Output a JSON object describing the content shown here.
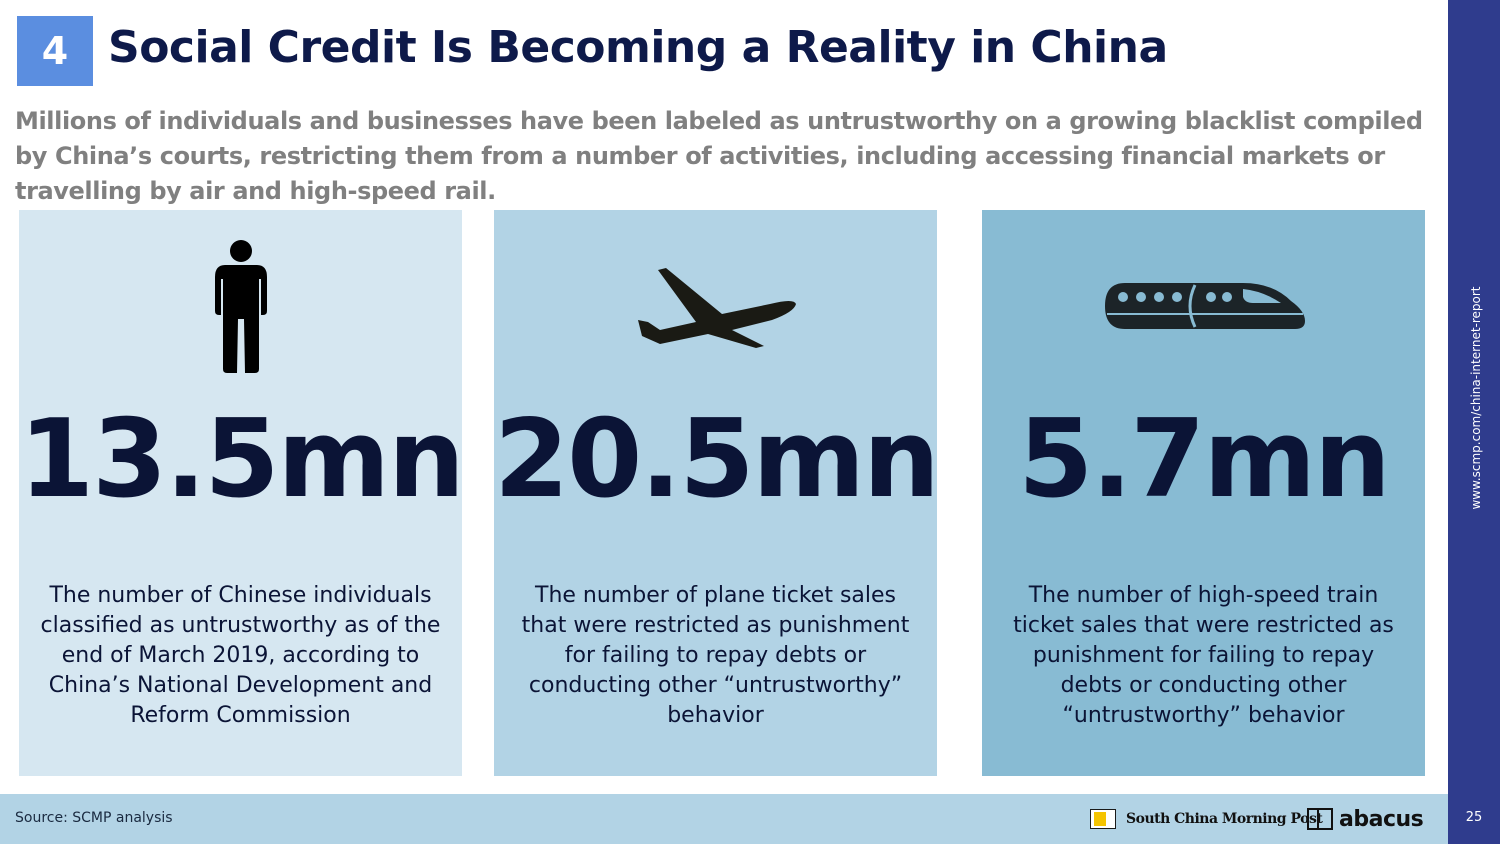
{
  "header": {
    "section_number": "4",
    "title": "Social Credit Is Becoming a Reality in China",
    "subtitle": "Millions of individuals and businesses have been labeled as untrustworthy on a growing blacklist compiled by China’s courts, restricting them from a number of activities, including accessing financial markets or travelling by air and high-speed rail."
  },
  "cards": [
    {
      "icon": "person-icon",
      "stat": "13.5mn",
      "description": "The number of Chinese individuals classified as untrustworthy as of the end of March 2019, according to China’s National Development and Reform Commission"
    },
    {
      "icon": "airplane-icon",
      "stat": "20.5mn",
      "description": "The number of plane ticket sales that were restricted as punishment for failing to repay debts or conducting other “untrustworthy” behavior"
    },
    {
      "icon": "train-icon",
      "stat": "5.7mn",
      "description": "The number of high-speed train ticket sales that were restricted as punishment for failing to repay debts or conducting other “untrustworthy” behavior"
    }
  ],
  "footer": {
    "source": "Source: SCMP analysis",
    "scmp_name": "South China Morning Post",
    "abacus_name": "abacus"
  },
  "sidebar": {
    "url": "www.scmp.com/china-internet-report",
    "page_number": "25"
  },
  "colors": {
    "badge": "#5b8ee0",
    "card_1": "#d6e7f1",
    "card_2": "#b2d3e5",
    "card_3": "#88bbd3",
    "right_bar": "#2f3c8d"
  }
}
